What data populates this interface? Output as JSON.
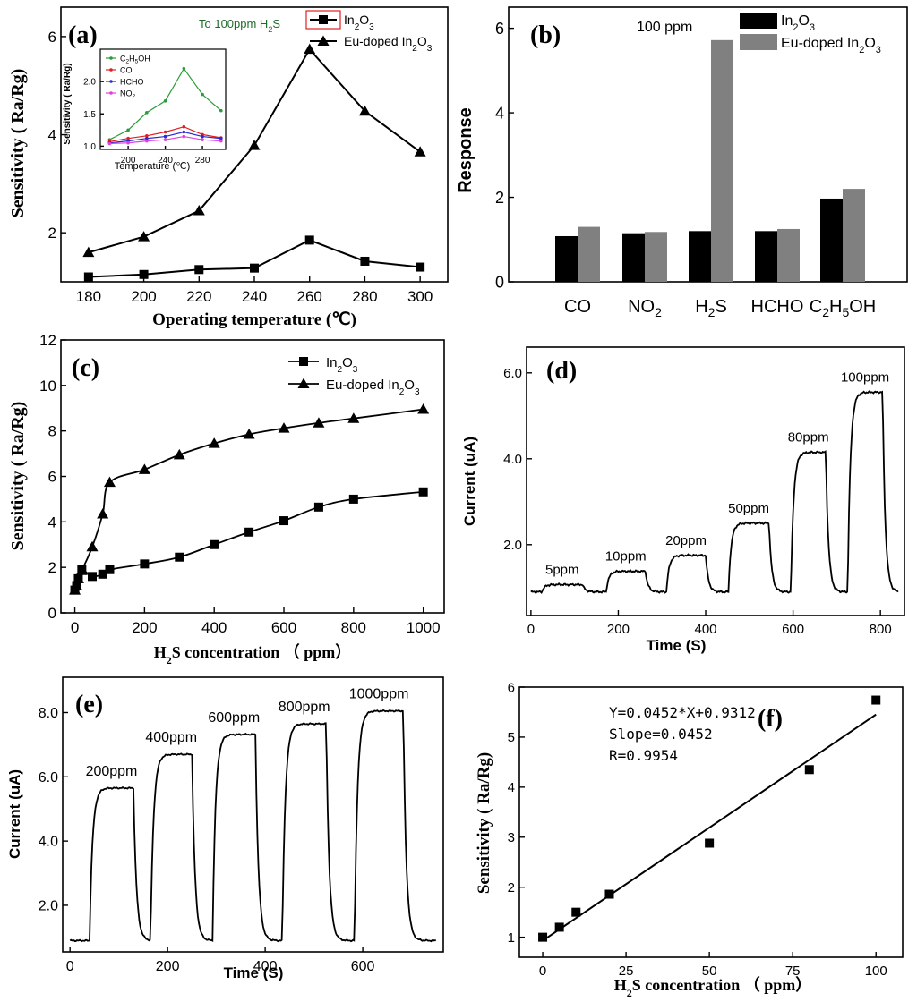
{
  "chart_data": [
    {
      "id": "a",
      "type": "line",
      "label": "(a)",
      "xlabel": "Operating temperature (℃)",
      "ylabel": "Sensitivity ( Ra/Rg)",
      "xlim": [
        170,
        310
      ],
      "ylim": [
        1.0,
        6.6
      ],
      "xticks": [
        "180",
        "200",
        "220",
        "240",
        "260",
        "280",
        "300"
      ],
      "yticks": [
        "2",
        "4",
        "6"
      ],
      "annotation": "To 100ppm H2S",
      "x": [
        180,
        200,
        220,
        240,
        260,
        280,
        300
      ],
      "series": [
        {
          "name": "In2O3",
          "marker": "square",
          "values": [
            1.1,
            1.15,
            1.25,
            1.28,
            1.85,
            1.42,
            1.3
          ]
        },
        {
          "name": "Eu-doped In2O3",
          "marker": "triangle",
          "values": [
            1.6,
            1.92,
            2.45,
            3.78,
            5.74,
            4.48,
            3.65
          ]
        }
      ],
      "inset": {
        "type": "line",
        "xlabel": "Temperature (℃)",
        "ylabel": "Sensitivity ( Ra/Rg)",
        "xlim": [
          170,
          305
        ],
        "ylim": [
          0.95,
          2.5
        ],
        "xticks": [
          "200",
          "240",
          "280"
        ],
        "yticks": [
          "1.0",
          "1.5",
          "2.0"
        ],
        "x": [
          180,
          200,
          220,
          240,
          260,
          280,
          300
        ],
        "series": [
          {
            "name": "C2H5OH",
            "color": "#2a9d3a",
            "values": [
              1.1,
              1.25,
              1.52,
              1.7,
              2.2,
              1.8,
              1.55
            ]
          },
          {
            "name": "CO",
            "color": "#e02020",
            "values": [
              1.07,
              1.12,
              1.16,
              1.22,
              1.3,
              1.18,
              1.13
            ]
          },
          {
            "name": "HCHO",
            "color": "#2a2ad0",
            "values": [
              1.05,
              1.08,
              1.12,
              1.15,
              1.22,
              1.15,
              1.12
            ]
          },
          {
            "name": "NO2",
            "color": "#e040e0",
            "values": [
              1.04,
              1.05,
              1.08,
              1.1,
              1.15,
              1.1,
              1.08
            ]
          }
        ]
      }
    },
    {
      "id": "b",
      "type": "bar",
      "label": "(b)",
      "ylabel": "Response",
      "ylim": [
        0,
        6.5
      ],
      "yticks": [
        "0",
        "2",
        "4",
        "6"
      ],
      "annotation": "100 ppm",
      "categories": [
        "CO",
        "NO2",
        "H2S",
        "HCHO",
        "C2H5OH"
      ],
      "series": [
        {
          "name": "In2O3",
          "color": "#000000",
          "values": [
            1.08,
            1.15,
            1.2,
            1.2,
            1.97
          ]
        },
        {
          "name": "Eu-doped In2O3",
          "color": "#808080",
          "values": [
            1.3,
            1.18,
            5.72,
            1.25,
            2.2
          ]
        }
      ]
    },
    {
      "id": "c",
      "type": "line",
      "label": "(c)",
      "xlabel": "H2S concentration ( ppm)",
      "ylabel": "Sensitivity ( Ra/Rg)",
      "xlim": [
        -40,
        1060
      ],
      "ylim": [
        0,
        12
      ],
      "xticks": [
        "0",
        "200",
        "400",
        "600",
        "800",
        "1000"
      ],
      "yticks": [
        "0",
        "2",
        "4",
        "6",
        "8",
        "10",
        "12"
      ],
      "series": [
        {
          "name": "In2O3",
          "marker": "square",
          "x": [
            0,
            5,
            10,
            20,
            50,
            80,
            100,
            200,
            300,
            400,
            500,
            600,
            700,
            800,
            1000
          ],
          "values": [
            1.0,
            1.2,
            1.5,
            1.9,
            1.6,
            1.7,
            1.9,
            2.15,
            2.45,
            3.0,
            3.55,
            4.05,
            4.65,
            5.0,
            5.32
          ]
        },
        {
          "name": "Eu-doped In2O3",
          "marker": "triangle",
          "x": [
            0,
            5,
            10,
            20,
            50,
            80,
            100,
            200,
            300,
            400,
            500,
            600,
            700,
            800,
            1000
          ],
          "values": [
            1.0,
            1.2,
            1.5,
            1.86,
            2.9,
            4.35,
            5.74,
            6.3,
            6.95,
            7.45,
            7.85,
            8.12,
            8.35,
            8.55,
            8.95
          ]
        }
      ]
    },
    {
      "id": "d",
      "type": "line",
      "label": "(d)",
      "xlabel": "Time (S)",
      "ylabel": "Current (uA)",
      "xlim": [
        -10,
        855
      ],
      "ylim": [
        0.35,
        6.6
      ],
      "xticks": [
        "0",
        "200",
        "400",
        "600",
        "800"
      ],
      "yticks": [
        "2.0",
        "4.0",
        "6.0"
      ],
      "baseline": 0.9,
      "pulses": [
        {
          "label": "5ppm",
          "start": 25,
          "end": 118,
          "level": 1.07
        },
        {
          "label": "10ppm",
          "start": 172,
          "end": 262,
          "level": 1.38
        },
        {
          "label": "20ppm",
          "start": 310,
          "end": 400,
          "level": 1.75
        },
        {
          "label": "50ppm",
          "start": 452,
          "end": 545,
          "level": 2.5
        },
        {
          "label": "80ppm",
          "start": 595,
          "end": 675,
          "level": 4.15
        },
        {
          "label": "100ppm",
          "start": 725,
          "end": 805,
          "level": 5.55
        }
      ]
    },
    {
      "id": "e",
      "type": "line",
      "label": "(e)",
      "xlabel": "Time (S)",
      "ylabel": "Current (uA)",
      "xlim": [
        -15,
        765
      ],
      "ylim": [
        0.55,
        9.1
      ],
      "xticks": [
        "0",
        "200",
        "400",
        "600"
      ],
      "yticks": [
        "2.0",
        "4.0",
        "6.0",
        "8.0"
      ],
      "baseline": 0.9,
      "pulses": [
        {
          "label": "200ppm",
          "start": 40,
          "end": 130,
          "level": 5.65
        },
        {
          "label": "400ppm",
          "start": 165,
          "end": 250,
          "level": 6.7
        },
        {
          "label": "600ppm",
          "start": 292,
          "end": 380,
          "level": 7.32
        },
        {
          "label": "800ppm",
          "start": 435,
          "end": 525,
          "level": 7.65
        },
        {
          "label": "1000ppm",
          "start": 583,
          "end": 683,
          "level": 8.05
        }
      ]
    },
    {
      "id": "f",
      "type": "scatter",
      "label": "(f)",
      "xlabel": "H2S concentration ( ppm)",
      "ylabel": "Sensitivity ( Ra/Rg)",
      "xlim": [
        -7,
        108
      ],
      "ylim": [
        0.6,
        6.0
      ],
      "xticks": [
        "0",
        "25",
        "50",
        "75",
        "100"
      ],
      "yticks": [
        "1",
        "2",
        "3",
        "4",
        "5",
        "6"
      ],
      "x": [
        0,
        5,
        10,
        20,
        50,
        80,
        100
      ],
      "values": [
        1.0,
        1.2,
        1.5,
        1.86,
        2.88,
        4.35,
        5.74
      ],
      "fit": {
        "slope": 0.0452,
        "intercept": 0.9312
      },
      "annotations": [
        "Y=0.0452*X+0.9312",
        "Slope=0.0452",
        "R=0.9954"
      ]
    }
  ]
}
